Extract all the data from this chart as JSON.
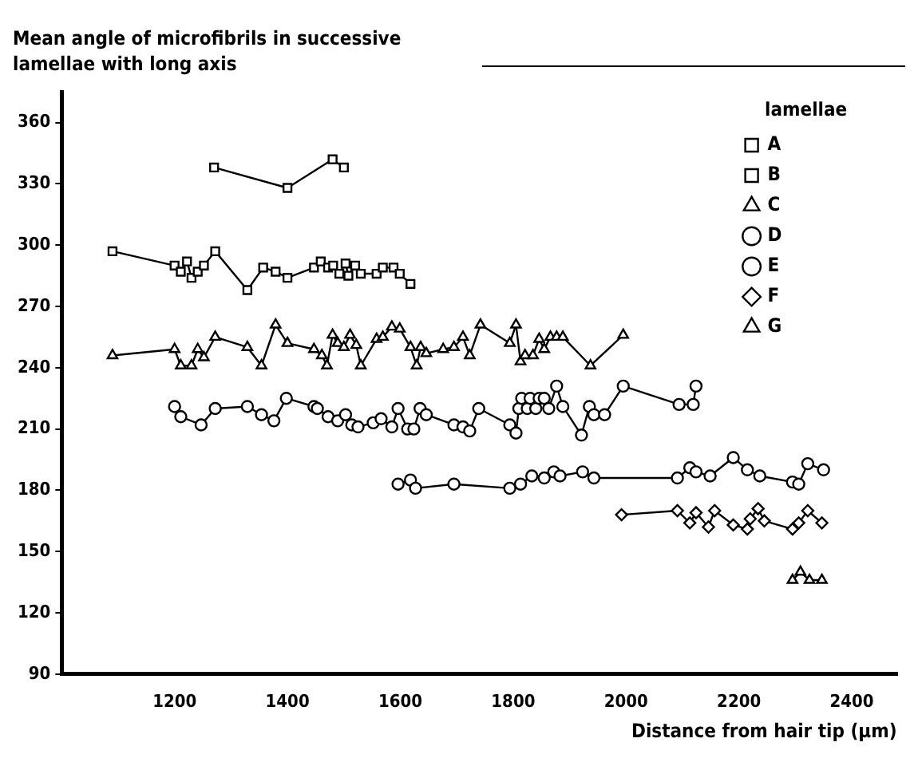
{
  "chart_data": {
    "type": "line",
    "ylabel": "Mean angle of microfibrils in successive lamellae with long axis",
    "xlabel": "Distance from hair tip (µm)",
    "legend_title": "lamellae",
    "legend": "top right",
    "grid": false,
    "line_style": "solid",
    "xlim": [
      1000,
      2480
    ],
    "xticks": [
      1200,
      1400,
      1600,
      1800,
      2000,
      2200,
      2400
    ],
    "ylim": [
      90,
      375
    ],
    "yticks": [
      90,
      120,
      150,
      180,
      210,
      240,
      270,
      300,
      330,
      360
    ],
    "series": [
      {
        "name": "A",
        "color": "#000000",
        "marker": "square",
        "x": [
          1270,
          1400,
          1480,
          1500
        ],
        "values": [
          338,
          328,
          342,
          338
        ]
      },
      {
        "name": "B",
        "color": "#000000",
        "marker": "square",
        "x": [
          1090,
          1200,
          1211,
          1222,
          1230,
          1241,
          1252,
          1272,
          1329,
          1357,
          1379,
          1400,
          1447,
          1459,
          1472,
          1481,
          1492,
          1503,
          1508,
          1520,
          1530,
          1558,
          1569,
          1588,
          1599,
          1618
        ],
        "values": [
          297,
          290,
          287,
          292,
          284,
          287,
          290,
          297,
          278,
          289,
          287,
          284,
          289,
          292,
          289,
          290,
          286,
          291,
          285,
          290,
          286,
          286,
          289,
          289,
          286,
          281
        ]
      },
      {
        "name": "C",
        "color": "#000000",
        "marker": "triangle",
        "x": [
          1090,
          1200,
          1211,
          1230,
          1241,
          1252,
          1272,
          1329,
          1354,
          1379,
          1400,
          1447,
          1461,
          1470,
          1480,
          1489,
          1500,
          1511,
          1522,
          1530,
          1558,
          1569,
          1585,
          1599,
          1618,
          1629,
          1636,
          1646,
          1676,
          1695,
          1711,
          1723,
          1742,
          1794,
          1805,
          1813,
          1821,
          1835,
          1846,
          1855,
          1866,
          1877,
          1888,
          1937,
          1995
        ],
        "values": [
          246,
          249,
          241,
          241,
          249,
          245,
          255,
          250,
          241,
          261,
          252,
          249,
          246,
          241,
          256,
          252,
          250,
          256,
          251,
          241,
          254,
          255,
          260,
          259,
          250,
          241,
          250,
          247,
          249,
          250,
          255,
          246,
          261,
          252,
          261,
          243,
          246,
          246,
          254,
          249,
          255,
          255,
          255,
          241,
          256
        ]
      },
      {
        "name": "D",
        "color": "#000000",
        "marker": "circle",
        "x": [
          1200,
          1211,
          1247,
          1272,
          1329,
          1354,
          1376,
          1398,
          1447,
          1453,
          1472,
          1489,
          1503,
          1514,
          1525,
          1552,
          1566,
          1585,
          1596,
          1613,
          1624,
          1635,
          1646,
          1695,
          1711,
          1723,
          1739,
          1794,
          1805,
          1810,
          1815,
          1825,
          1830,
          1840,
          1846,
          1855,
          1863,
          1877,
          1888,
          1921,
          1935,
          1943,
          1962,
          1995,
          2094,
          2119,
          2124
        ],
        "values": [
          221,
          216,
          212,
          220,
          221,
          217,
          214,
          225,
          221,
          220,
          216,
          214,
          217,
          212,
          211,
          213,
          215,
          211,
          220,
          210,
          210,
          220,
          217,
          212,
          211,
          209,
          220,
          212,
          208,
          220,
          225,
          220,
          225,
          220,
          225,
          225,
          220,
          231,
          221,
          207,
          221,
          217,
          217,
          231,
          222,
          222,
          231
        ]
      },
      {
        "name": "E",
        "color": "#000000",
        "marker": "circle",
        "x": [
          1596,
          1618,
          1627,
          1695,
          1794,
          1813,
          1833,
          1855,
          1872,
          1883,
          1923,
          1943,
          2091,
          2113,
          2124,
          2149,
          2190,
          2215,
          2237,
          2295,
          2306,
          2322,
          2350
        ],
        "values": [
          183,
          185,
          181,
          183,
          181,
          183,
          187,
          186,
          189,
          187,
          189,
          186,
          186,
          191,
          189,
          187,
          196,
          190,
          187,
          184,
          183,
          193,
          190
        ]
      },
      {
        "name": "F",
        "color": "#000000",
        "marker": "diamond",
        "x": [
          1992,
          2091,
          2113,
          2124,
          2146,
          2157,
          2190,
          2215,
          2220,
          2234,
          2245,
          2295,
          2306,
          2322,
          2347
        ],
        "values": [
          168,
          170,
          164,
          169,
          162,
          170,
          163,
          161,
          166,
          171,
          165,
          161,
          164,
          170,
          164
        ]
      },
      {
        "name": "G",
        "color": "#000000",
        "marker": "triangle",
        "x": [
          2295,
          2309,
          2325,
          2347
        ],
        "values": [
          136,
          140,
          136,
          136
        ]
      }
    ]
  }
}
